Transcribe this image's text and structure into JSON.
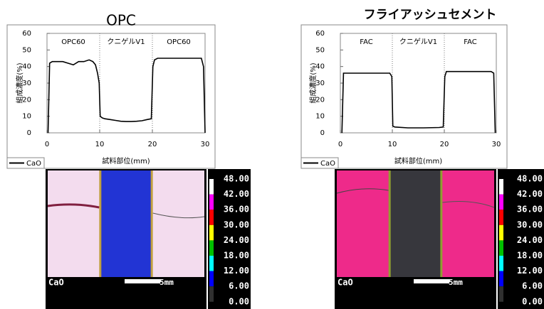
{
  "chart_data": [
    {
      "type": "line",
      "title": "OPC",
      "xlabel": "試料部位(mm)",
      "ylabel": "組成濃度(%)",
      "annotations": [
        "OPC60",
        "クニゲルV1",
        "OPC60"
      ],
      "boundaries": [
        10,
        20
      ],
      "xlim": [
        0,
        30
      ],
      "ylim": [
        0,
        60
      ],
      "xticks": [
        0,
        10,
        20,
        30
      ],
      "yticks": [
        0,
        10,
        20,
        30,
        40,
        50,
        60
      ],
      "x": [
        0.2,
        0.5,
        1,
        2,
        3,
        4,
        5,
        6,
        7,
        8,
        8.7,
        9.2,
        9.6,
        9.9,
        10.1,
        10.5,
        11,
        12,
        13,
        14,
        15,
        16,
        17,
        18,
        19,
        19.8,
        20.1,
        20.4,
        21,
        22,
        24,
        26,
        28,
        29.3,
        29.7,
        30
      ],
      "series": [
        {
          "name": "CaO",
          "color": "#000000",
          "values": [
            0,
            42,
            43,
            43,
            43,
            42,
            41,
            43,
            43,
            44,
            43,
            41,
            36,
            30,
            10,
            9,
            8.5,
            8,
            7.5,
            7,
            6.8,
            6.8,
            7,
            7.3,
            8,
            8.5,
            40,
            44,
            45,
            45,
            45,
            45,
            45,
            45,
            40,
            0
          ]
        }
      ]
    },
    {
      "type": "line",
      "title": "フライアッシュセメント",
      "xlabel": "試料部位(mm)",
      "ylabel": "組成濃度(%)",
      "annotations": [
        "FAC",
        "クニゲルV1",
        "FAC"
      ],
      "boundaries": [
        10,
        20
      ],
      "xlim": [
        0,
        30
      ],
      "ylim": [
        0,
        60
      ],
      "xticks": [
        0,
        10,
        20,
        30
      ],
      "yticks": [
        0,
        10,
        20,
        30,
        40,
        50,
        60
      ],
      "x": [
        0.3,
        0.6,
        2,
        5,
        8,
        9.5,
        9.9,
        10.1,
        10.5,
        13,
        16,
        19,
        19.8,
        20.1,
        20.4,
        23,
        26,
        29,
        29.5,
        29.8
      ],
      "series": [
        {
          "name": "CaO",
          "color": "#000000",
          "values": [
            0,
            36,
            36,
            36,
            36,
            36,
            34,
            4,
            3.5,
            3,
            3,
            3.2,
            3.5,
            34,
            37,
            37,
            37,
            37,
            36,
            0
          ]
        }
      ]
    }
  ],
  "maps": [
    {
      "element": "CaO",
      "scale_bar": "5mm",
      "scale_labels": [
        "48.00",
        "42.00",
        "36.00",
        "30.00",
        "24.00",
        "18.00",
        "12.00",
        "6.00",
        "0.00"
      ]
    },
    {
      "element": "CaO",
      "scale_bar": "5mm",
      "scale_labels": [
        "48.00",
        "42.00",
        "36.00",
        "30.00",
        "24.00",
        "18.00",
        "12.00",
        "6.00",
        "0.00"
      ]
    }
  ]
}
